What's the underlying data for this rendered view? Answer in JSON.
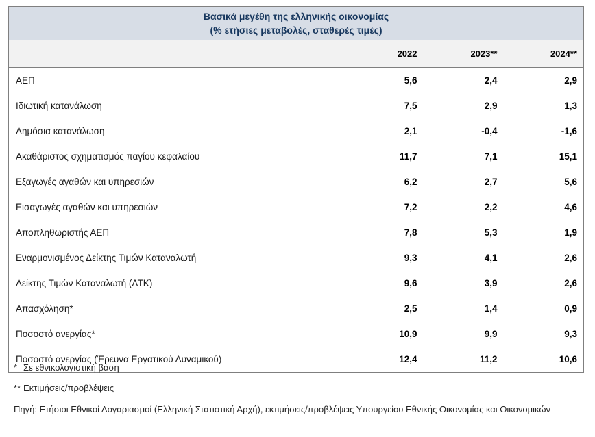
{
  "table": {
    "title_line1": "Βασικά μεγέθη της ελληνικής οικονομίας",
    "title_line2": "(% ετήσιες μεταβολές, σταθερές τιμές)",
    "columns": [
      "2022",
      "2023**",
      "2024**"
    ],
    "rows": [
      {
        "label": "ΑΕΠ",
        "v2022": "5,6",
        "v2023": "2,4",
        "v2024": "2,9"
      },
      {
        "label": "Ιδιωτική κατανάλωση",
        "v2022": "7,5",
        "v2023": "2,9",
        "v2024": "1,3"
      },
      {
        "label": "Δημόσια κατανάλωση",
        "v2022": "2,1",
        "v2023": "-0,4",
        "v2024": "-1,6"
      },
      {
        "label": "Ακαθάριστος σχηματισμός παγίου κεφαλαίου",
        "v2022": "11,7",
        "v2023": "7,1",
        "v2024": "15,1"
      },
      {
        "label": "Εξαγωγές αγαθών και υπηρεσιών",
        "v2022": "6,2",
        "v2023": "2,7",
        "v2024": "5,6"
      },
      {
        "label": "Εισαγωγές αγαθών και υπηρεσιών",
        "v2022": "7,2",
        "v2023": "2,2",
        "v2024": "4,6"
      },
      {
        "label": "Αποπληθωριστής ΑΕΠ",
        "v2022": "7,8",
        "v2023": "5,3",
        "v2024": "1,9"
      },
      {
        "label": "Εναρμονισμένος Δείκτης Τιμών Καταναλωτή",
        "v2022": "9,3",
        "v2023": "4,1",
        "v2024": "2,6"
      },
      {
        "label": "Δείκτης Τιμών Καταναλωτή (ΔΤΚ)",
        "v2022": "9,6",
        "v2023": "3,9",
        "v2024": "2,6"
      },
      {
        "label": "Απασχόληση*",
        "v2022": "2,5",
        "v2023": "1,4",
        "v2024": "0,9"
      },
      {
        "label": "Ποσοστό ανεργίας*",
        "v2022": "10,9",
        "v2023": "9,9",
        "v2024": "9,3"
      },
      {
        "label": "Ποσοστό ανεργίας (Έρευνα Εργατικού Δυναμικού)",
        "v2022": "12,4",
        "v2023": "11,2",
        "v2024": "10,6"
      }
    ]
  },
  "footnotes": {
    "fn1_marker": "*",
    "fn1_text": "Σε εθνικολογιστική βάση",
    "fn2_marker": "**",
    "fn2_text": "Εκτιμήσεις/προβλέψεις",
    "source": "Πηγή: Ετήσιοι Εθνικοί Λογαριασμοί (Ελληνική Στατιστική Αρχή), εκτιμήσεις/προβλέψεις Υπουργείου Εθνικής Οικονομίας και Οικονομικών"
  },
  "colors": {
    "title_background": "#d7dde6",
    "title_text": "#17375e",
    "header_background": "#f2f2f2",
    "border": "#7f7f7f"
  }
}
